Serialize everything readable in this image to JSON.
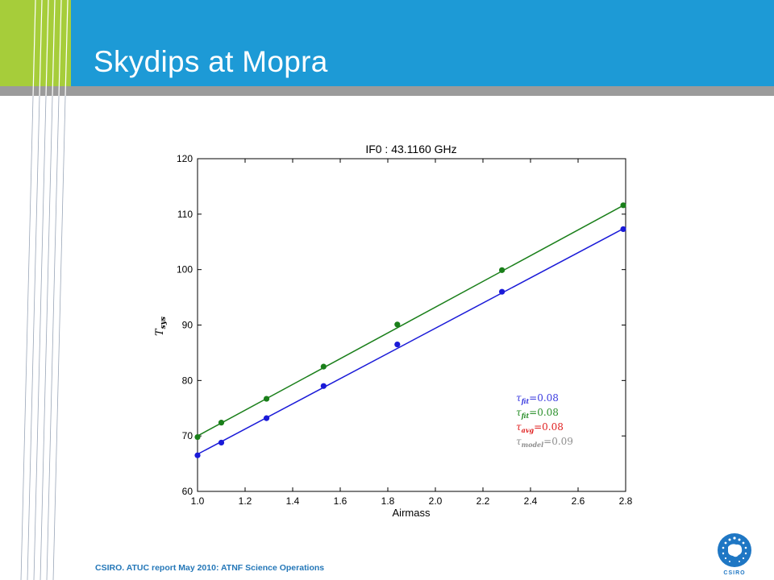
{
  "slide": {
    "title": "Skydips at Mopra",
    "footer": "CSIRO.  ATUC report May 2010:  ATNF Science Operations",
    "logo_text": "CSIRO"
  },
  "colors": {
    "header_blue": "#1d9ad6",
    "header_green": "#a6cd3a",
    "header_gray": "#9b9b9b",
    "footer_text": "#2477b8"
  },
  "chart_data": {
    "type": "scatter",
    "title": "IF0 : 43.1160 GHz",
    "xlabel": "Airmass",
    "ylabel": "T_sys",
    "xlim": [
      1.0,
      2.8
    ],
    "ylim": [
      60,
      120
    ],
    "xticks": [
      "1.0",
      "1.2",
      "1.4",
      "1.6",
      "1.8",
      "2.0",
      "2.2",
      "2.4",
      "2.6",
      "2.8"
    ],
    "yticks": [
      "60",
      "70",
      "80",
      "90",
      "100",
      "110",
      "120"
    ],
    "grid": false,
    "x": [
      1.0,
      1.1,
      1.29,
      1.53,
      1.84,
      2.28,
      2.79
    ],
    "series": [
      {
        "color": "#1a1ad8",
        "values": [
          66.5,
          68.8,
          73.2,
          79.0,
          86.5,
          96.0,
          107.3
        ],
        "fit": [
          66.7,
          107.6
        ]
      },
      {
        "color": "#1a7f1a",
        "values": [
          69.8,
          72.4,
          76.7,
          82.5,
          90.1,
          99.9,
          111.6
        ],
        "fit": [
          70.0,
          111.8
        ]
      }
    ],
    "legend": {
      "placement": "lower-right",
      "entries": [
        {
          "sym": "τ",
          "sub": "fit",
          "value": "0.08",
          "color": "#3a3adf"
        },
        {
          "sym": "τ",
          "sub": "fit",
          "value": "0.08",
          "color": "#2a8f2a"
        },
        {
          "sym": "τ",
          "sub": "avg",
          "value": "0.08",
          "color": "#e01f1f"
        },
        {
          "sym": "τ",
          "sub": "model",
          "value": "0.09",
          "color": "#8f8f8f"
        }
      ]
    }
  }
}
